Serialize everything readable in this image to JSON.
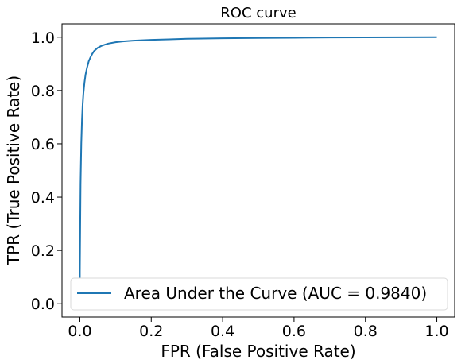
{
  "chart_data": {
    "type": "line",
    "title": "ROC curve",
    "xlabel": "FPR (False Positive Rate)",
    "ylabel": "TPR (True Positive Rate)",
    "xlim": [
      -0.05,
      1.05
    ],
    "ylim": [
      -0.05,
      1.05
    ],
    "x_ticks": [
      0.0,
      0.2,
      0.4,
      0.6,
      0.8,
      1.0
    ],
    "x_tick_labels": [
      "0.0",
      "0.2",
      "0.4",
      "0.6",
      "0.8",
      "1.0"
    ],
    "y_ticks": [
      0.0,
      0.2,
      0.4,
      0.6,
      0.8,
      1.0
    ],
    "y_tick_labels": [
      "0.0",
      "0.2",
      "0.4",
      "0.6",
      "0.8",
      "1.0"
    ],
    "grid": false,
    "legend_position": "lower-right",
    "series": [
      {
        "name": "Area Under the Curve (AUC = 0.9840)",
        "color": "#1f77b4",
        "x": [
          0.0,
          0.0,
          0.002,
          0.004,
          0.006,
          0.008,
          0.01,
          0.013,
          0.016,
          0.02,
          0.025,
          0.03,
          0.035,
          0.04,
          0.05,
          0.06,
          0.07,
          0.08,
          0.1,
          0.12,
          0.15,
          0.2,
          0.25,
          0.3,
          0.4,
          0.5,
          0.6,
          0.7,
          0.8,
          0.9,
          1.0
        ],
        "y": [
          0.0,
          0.12,
          0.45,
          0.6,
          0.69,
          0.75,
          0.79,
          0.83,
          0.86,
          0.885,
          0.91,
          0.925,
          0.938,
          0.948,
          0.96,
          0.967,
          0.972,
          0.976,
          0.981,
          0.984,
          0.987,
          0.99,
          0.992,
          0.994,
          0.996,
          0.997,
          0.998,
          0.999,
          0.9995,
          0.9998,
          1.0
        ]
      }
    ]
  }
}
